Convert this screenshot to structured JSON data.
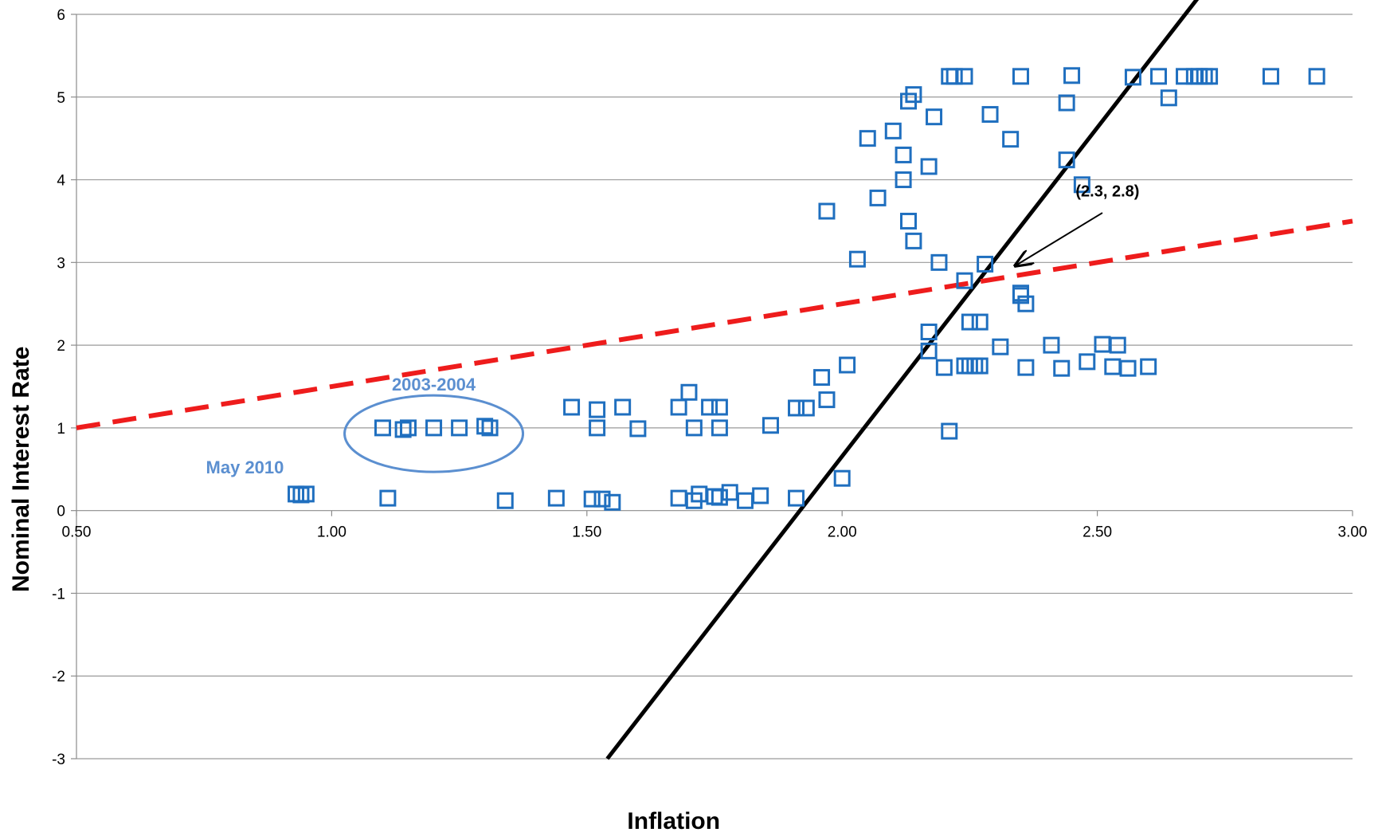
{
  "chart_data": {
    "type": "scatter",
    "title": "",
    "xlabel": "Inflation",
    "ylabel": "Nominal Interest Rate",
    "xlim": [
      0.5,
      3.0
    ],
    "ylim": [
      -3,
      6
    ],
    "x_ticks": [
      "0.50",
      "1.00",
      "1.50",
      "2.00",
      "2.50",
      "3.00"
    ],
    "y_ticks": [
      "-3",
      "-2",
      "-1",
      "0",
      "1",
      "2",
      "3",
      "4",
      "5",
      "6"
    ],
    "grid": "horizontal",
    "legend": "none",
    "series": [
      {
        "marker": "open-square",
        "color": "#1f6fbf",
        "points": [
          [
            0.93,
            0.2
          ],
          [
            0.94,
            0.19
          ],
          [
            0.95,
            0.2
          ],
          [
            1.1,
            1.0
          ],
          [
            1.14,
            0.98
          ],
          [
            1.15,
            1.0
          ],
          [
            1.2,
            1.0
          ],
          [
            1.25,
            1.0
          ],
          [
            1.3,
            1.02
          ],
          [
            1.31,
            1.0
          ],
          [
            1.11,
            0.15
          ],
          [
            1.34,
            0.12
          ],
          [
            1.44,
            0.15
          ],
          [
            1.51,
            0.14
          ],
          [
            1.53,
            0.14
          ],
          [
            1.55,
            0.1
          ],
          [
            1.47,
            1.25
          ],
          [
            1.52,
            1.22
          ],
          [
            1.52,
            1.0
          ],
          [
            1.57,
            1.25
          ],
          [
            1.6,
            0.99
          ],
          [
            1.68,
            1.25
          ],
          [
            1.7,
            1.43
          ],
          [
            1.71,
            1.0
          ],
          [
            1.74,
            1.25
          ],
          [
            1.76,
            1.25
          ],
          [
            1.76,
            1.0
          ],
          [
            1.68,
            0.15
          ],
          [
            1.71,
            0.12
          ],
          [
            1.72,
            0.2
          ],
          [
            1.75,
            0.17
          ],
          [
            1.76,
            0.16
          ],
          [
            1.78,
            0.22
          ],
          [
            1.81,
            0.12
          ],
          [
            1.84,
            0.18
          ],
          [
            1.86,
            1.03
          ],
          [
            1.91,
            1.24
          ],
          [
            1.93,
            1.24
          ],
          [
            1.91,
            0.15
          ],
          [
            1.96,
            1.61
          ],
          [
            1.97,
            1.34
          ],
          [
            1.97,
            3.62
          ],
          [
            2.0,
            0.39
          ],
          [
            2.01,
            1.76
          ],
          [
            2.03,
            3.04
          ],
          [
            2.05,
            4.5
          ],
          [
            2.07,
            3.78
          ],
          [
            2.1,
            4.59
          ],
          [
            2.12,
            4.3
          ],
          [
            2.12,
            4.0
          ],
          [
            2.13,
            3.5
          ],
          [
            2.13,
            4.95
          ],
          [
            2.14,
            5.03
          ],
          [
            2.14,
            3.26
          ],
          [
            2.17,
            4.16
          ],
          [
            2.17,
            2.16
          ],
          [
            2.17,
            1.93
          ],
          [
            2.18,
            4.76
          ],
          [
            2.19,
            3.0
          ],
          [
            2.2,
            1.73
          ],
          [
            2.21,
            0.96
          ],
          [
            2.21,
            5.25
          ],
          [
            2.22,
            5.25
          ],
          [
            2.24,
            5.25
          ],
          [
            2.24,
            2.78
          ],
          [
            2.24,
            1.75
          ],
          [
            2.25,
            2.28
          ],
          [
            2.25,
            1.75
          ],
          [
            2.26,
            1.75
          ],
          [
            2.27,
            1.75
          ],
          [
            2.27,
            2.28
          ],
          [
            2.28,
            2.98
          ],
          [
            2.29,
            4.79
          ],
          [
            2.31,
            1.98
          ],
          [
            2.33,
            4.49
          ],
          [
            2.35,
            2.63
          ],
          [
            2.35,
            2.6
          ],
          [
            2.35,
            5.25
          ],
          [
            2.36,
            2.5
          ],
          [
            2.36,
            1.73
          ],
          [
            2.41,
            2.0
          ],
          [
            2.43,
            1.72
          ],
          [
            2.44,
            4.93
          ],
          [
            2.44,
            4.24
          ],
          [
            2.45,
            5.26
          ],
          [
            2.47,
            3.94
          ],
          [
            2.48,
            1.8
          ],
          [
            2.51,
            2.01
          ],
          [
            2.53,
            1.74
          ],
          [
            2.54,
            2.0
          ],
          [
            2.56,
            1.72
          ],
          [
            2.57,
            5.24
          ],
          [
            2.6,
            1.74
          ],
          [
            2.62,
            5.25
          ],
          [
            2.64,
            4.99
          ],
          [
            2.67,
            5.25
          ],
          [
            2.69,
            5.25
          ],
          [
            2.7,
            5.25
          ],
          [
            2.71,
            5.25
          ],
          [
            2.72,
            5.25
          ],
          [
            2.84,
            5.25
          ],
          [
            2.93,
            5.25
          ]
        ]
      }
    ],
    "lines": [
      {
        "style": "solid",
        "color": "#000000",
        "points": [
          [
            1.54,
            -3
          ],
          [
            2.71,
            6.3
          ]
        ]
      },
      {
        "style": "dashed",
        "color": "#ee1c1c",
        "points": [
          [
            0.5,
            1.0
          ],
          [
            3.0,
            3.5
          ]
        ]
      }
    ],
    "annotations": {
      "point_label": "(2.3, 2.8)",
      "point_label_target": [
        2.33,
        2.98
      ],
      "group_label": "2003-2004",
      "group_ellipse_center": [
        1.2,
        0.93
      ],
      "outlier_label": "May 2010"
    }
  }
}
